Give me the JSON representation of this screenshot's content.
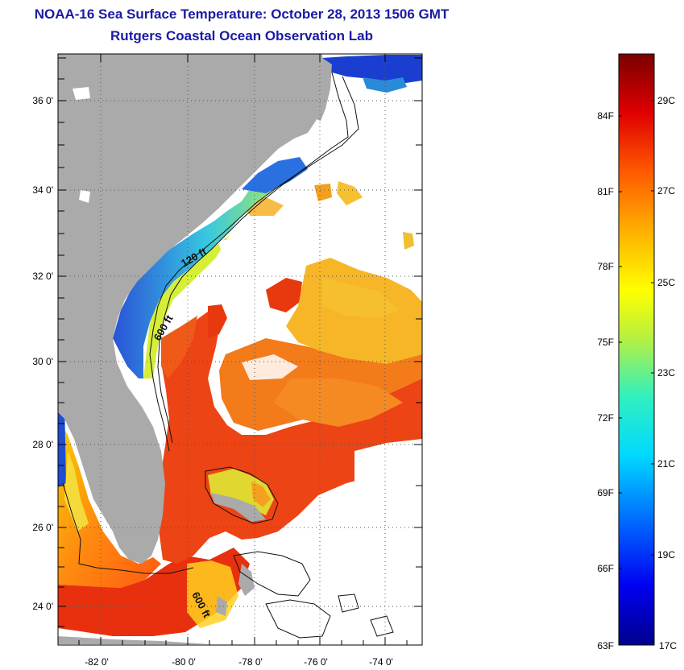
{
  "title": {
    "line1": "NOAA-16 Sea Surface Temperature:  October 28, 2013 1506 GMT",
    "line2": "Rutgers Coastal Ocean Observation Lab"
  },
  "map": {
    "lat_labels": [
      "36 0'",
      "34 0'",
      "32 0'",
      "30 0'",
      "28 0'",
      "26 0'",
      "24 0'"
    ],
    "lon_labels": [
      "-82 0'",
      "-80 0'",
      "-78 0'",
      "-76 0'",
      "-74 0'"
    ],
    "contour_labels": [
      "120 ft",
      "600 ft",
      "600 ft"
    ],
    "colors": {
      "land": "#aaaaaa",
      "cloud": "#ffffff",
      "warm": "#e63a0f",
      "cool": "#1a46c8"
    }
  },
  "colorbar": {
    "f_labels": [
      "84F",
      "81F",
      "78F",
      "75F",
      "72F",
      "69F",
      "66F",
      "63F"
    ],
    "c_labels": [
      "29C",
      "27C",
      "25C",
      "23C",
      "21C",
      "19C",
      "17C"
    ]
  }
}
